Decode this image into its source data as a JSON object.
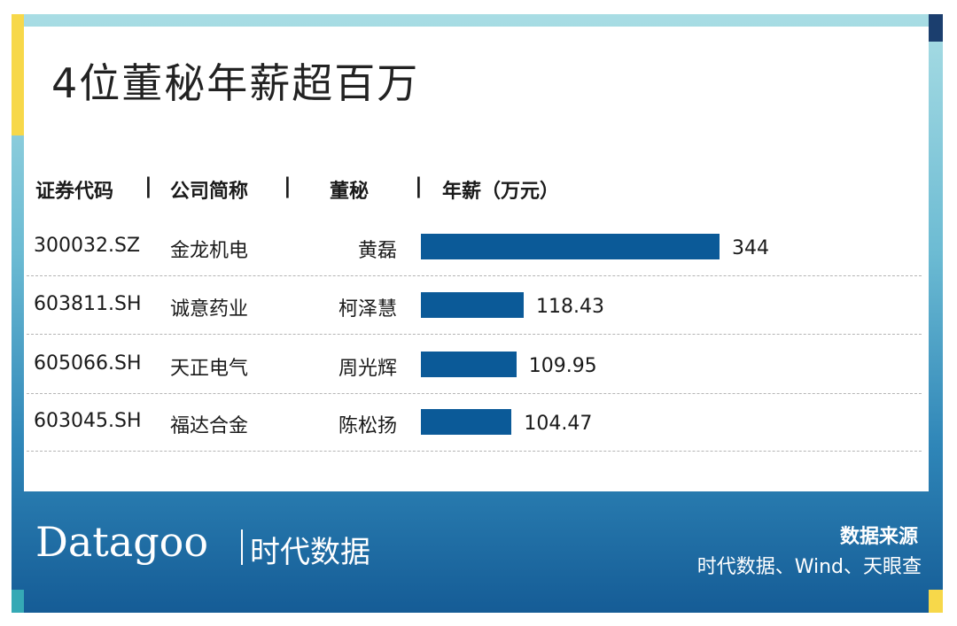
{
  "title": "4位董秘年薪超百万",
  "headers": {
    "code": "证券代码",
    "company": "公司简称",
    "secretary": "董秘",
    "salary": "年薪（万元）",
    "separator": "|"
  },
  "chart_data": {
    "type": "bar",
    "categories": [
      "黄磊",
      "柯泽慧",
      "周光辉",
      "陈松扬"
    ],
    "values": [
      344,
      118.43,
      109.95,
      104.47
    ],
    "value_labels": [
      "344",
      "118.43",
      "109.95",
      "104.47"
    ],
    "title": "4位董秘年薪超百万",
    "xlabel": "",
    "ylabel": "年薪（万元）",
    "orientation": "horizontal",
    "color": "#0b5a98",
    "rows": [
      {
        "code": "300032.SZ",
        "company": "金龙机电",
        "secretary": "黄磊",
        "salary": "344"
      },
      {
        "code": "603811.SH",
        "company": "诚意药业",
        "secretary": "柯泽慧",
        "salary": "118.43"
      },
      {
        "code": "605066.SH",
        "company": "天正电气",
        "secretary": "周光辉",
        "salary": "109.95"
      },
      {
        "code": "603045.SH",
        "company": "福达合金",
        "secretary": "陈松扬",
        "salary": "104.47"
      }
    ]
  },
  "footer": {
    "logo_en": "Datagoo",
    "logo_cn": "时代数据",
    "source_label": "数据来源",
    "source_text": "时代数据、Wind、天眼查"
  },
  "colors": {
    "bar": "#0b5a98",
    "accent_yellow": "#f7d84a",
    "accent_navy": "#1b3e6e",
    "footer_blue": "#155c96"
  }
}
